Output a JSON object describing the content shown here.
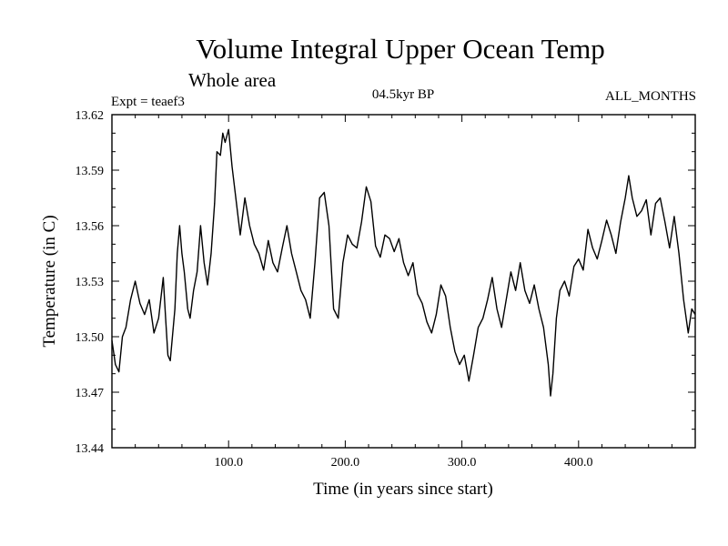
{
  "chart_data": {
    "type": "line",
    "title": "Volume Integral Upper Ocean Temp",
    "subtitle": "Whole area",
    "expt_label": "Expt = teaef3",
    "period_label": "04.5kyr BP",
    "months_label": "ALL_MONTHS",
    "xlabel": "Time (in years since start)",
    "ylabel": "Temperature (in C)",
    "xlim": [
      0,
      500
    ],
    "ylim": [
      13.44,
      13.62
    ],
    "x_ticks": [
      100,
      200,
      300,
      400
    ],
    "x_tick_labels": [
      "100.0",
      "200.0",
      "300.0",
      "400.0"
    ],
    "y_ticks": [
      13.44,
      13.47,
      13.5,
      13.53,
      13.56,
      13.59,
      13.62
    ],
    "y_tick_labels": [
      "13.44",
      "13.47",
      "13.50",
      "13.53",
      "13.56",
      "13.59",
      "13.62"
    ],
    "series": [
      {
        "name": "Volume Integral Upper Ocean Temp",
        "x": [
          0,
          3,
          6,
          9,
          12,
          16,
          20,
          24,
          28,
          32,
          36,
          40,
          44,
          46,
          48,
          50,
          54,
          56,
          58,
          60,
          62,
          65,
          67,
          70,
          73,
          76,
          79,
          82,
          85,
          88,
          90,
          93,
          95,
          97,
          100,
          103,
          106,
          110,
          114,
          118,
          122,
          126,
          130,
          134,
          138,
          142,
          146,
          150,
          154,
          158,
          162,
          166,
          170,
          174,
          178,
          182,
          186,
          190,
          194,
          198,
          202,
          206,
          210,
          214,
          218,
          222,
          226,
          230,
          234,
          238,
          242,
          246,
          250,
          254,
          258,
          262,
          266,
          270,
          274,
          278,
          282,
          286,
          290,
          294,
          298,
          302,
          306,
          310,
          314,
          318,
          322,
          326,
          330,
          334,
          338,
          342,
          346,
          350,
          354,
          358,
          362,
          366,
          370,
          374,
          376,
          378,
          381,
          384,
          388,
          392,
          396,
          400,
          404,
          408,
          412,
          416,
          420,
          424,
          428,
          432,
          436,
          440,
          443,
          446,
          450,
          454,
          458,
          462,
          466,
          470,
          474,
          478,
          482,
          486,
          490,
          494,
          497,
          500
        ],
        "values": [
          13.498,
          13.485,
          13.481,
          13.5,
          13.505,
          13.52,
          13.53,
          13.518,
          13.512,
          13.52,
          13.502,
          13.51,
          13.532,
          13.51,
          13.49,
          13.487,
          13.515,
          13.545,
          13.56,
          13.545,
          13.535,
          13.515,
          13.51,
          13.525,
          13.535,
          13.56,
          13.54,
          13.528,
          13.545,
          13.572,
          13.6,
          13.598,
          13.61,
          13.605,
          13.612,
          13.592,
          13.576,
          13.555,
          13.575,
          13.56,
          13.55,
          13.545,
          13.536,
          13.552,
          13.54,
          13.535,
          13.548,
          13.56,
          13.545,
          13.535,
          13.525,
          13.52,
          13.51,
          13.54,
          13.575,
          13.578,
          13.56,
          13.515,
          13.51,
          13.54,
          13.555,
          13.55,
          13.548,
          13.562,
          13.581,
          13.573,
          13.549,
          13.543,
          13.555,
          13.553,
          13.546,
          13.553,
          13.54,
          13.533,
          13.54,
          13.523,
          13.518,
          13.508,
          13.502,
          13.512,
          13.528,
          13.522,
          13.505,
          13.492,
          13.485,
          13.49,
          13.476,
          13.49,
          13.505,
          13.51,
          13.52,
          13.532,
          13.515,
          13.505,
          13.52,
          13.535,
          13.525,
          13.54,
          13.525,
          13.518,
          13.528,
          13.515,
          13.505,
          13.485,
          13.468,
          13.48,
          13.51,
          13.525,
          13.53,
          13.522,
          13.538,
          13.542,
          13.536,
          13.558,
          13.548,
          13.542,
          13.552,
          13.563,
          13.555,
          13.545,
          13.562,
          13.575,
          13.587,
          13.575,
          13.565,
          13.568,
          13.574,
          13.555,
          13.572,
          13.575,
          13.562,
          13.548,
          13.565,
          13.545,
          13.52,
          13.502,
          13.515,
          13.512
        ]
      }
    ]
  }
}
